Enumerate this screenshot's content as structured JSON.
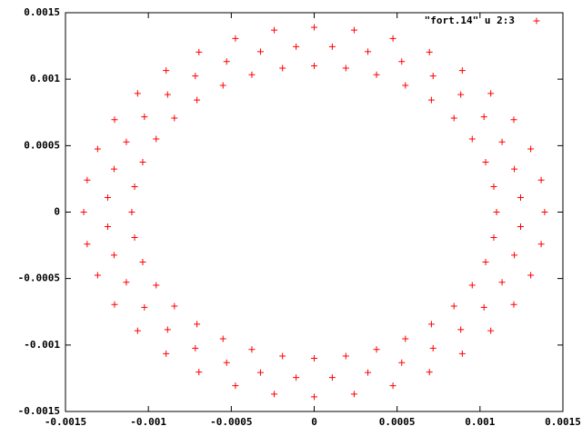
{
  "chart_data": {
    "type": "scatter",
    "xlim": [
      -0.0015,
      0.0015
    ],
    "ylim": [
      -0.0015,
      0.0015
    ],
    "xticks": [
      -0.0015,
      -0.001,
      -0.0005,
      0,
      0.0005,
      0.001,
      0.0015
    ],
    "yticks": [
      -0.0015,
      -0.001,
      -0.0005,
      0,
      0.0005,
      0.001,
      0.0015
    ],
    "legend": "top-right",
    "series": [
      {
        "name": "\"fort.14\" u 2:3",
        "color": "#ff0000",
        "x": [
          0.0011,
          0.001083,
          0.001034,
          0.000953,
          0.000843,
          0.000707,
          0.00055,
          0.000376,
          0.000191,
          0,
          -0.000191,
          -0.000376,
          -0.00055,
          -0.000707,
          -0.000843,
          -0.000953,
          -0.001034,
          -0.001083,
          -0.0011,
          -0.001083,
          -0.001034,
          -0.000953,
          -0.000843,
          -0.000707,
          -0.00055,
          -0.000376,
          -0.000191,
          0,
          0.000191,
          0.000376,
          0.00055,
          0.000707,
          0.000843,
          0.000953,
          0.001034,
          0.001083,
          0.001245,
          0.001207,
          0.001133,
          0.001024,
          0.000884,
          0.000717,
          0.000528,
          0.000324,
          0.000109,
          -0.000109,
          -0.000324,
          -0.000528,
          -0.000717,
          -0.000884,
          -0.001024,
          -0.001133,
          -0.001207,
          -0.001245,
          -0.001245,
          -0.001207,
          -0.001133,
          -0.001024,
          -0.000884,
          -0.000717,
          -0.000528,
          -0.000324,
          -0.000109,
          0.000109,
          0.000324,
          0.000528,
          0.000717,
          0.000884,
          0.001024,
          0.001133,
          0.001207,
          0.001245,
          0.00139,
          0.001369,
          0.001306,
          0.001204,
          0.001065,
          0.000893,
          0.000695,
          0.000475,
          0.000241,
          0,
          -0.000241,
          -0.000475,
          -0.000695,
          -0.000893,
          -0.001065,
          -0.001204,
          -0.001306,
          -0.001369,
          -0.00139,
          -0.001369,
          -0.001306,
          -0.001204,
          -0.001065,
          -0.000893,
          -0.000695,
          -0.000475,
          -0.000241,
          0,
          0.000241,
          0.000475,
          0.000695,
          0.000893,
          0.001065,
          0.001204,
          0.001306,
          0.001369
        ],
        "values": [
          0,
          0.000191,
          0.000376,
          0.00055,
          0.000707,
          0.000843,
          0.000953,
          0.001034,
          0.001083,
          0.0011,
          0.001083,
          0.001034,
          0.000953,
          0.000843,
          0.000707,
          0.00055,
          0.000376,
          0.000191,
          0,
          -0.000191,
          -0.000376,
          -0.00055,
          -0.000707,
          -0.000843,
          -0.000953,
          -0.001034,
          -0.001083,
          -0.0011,
          -0.001083,
          -0.001034,
          -0.000953,
          -0.000843,
          -0.000707,
          -0.00055,
          -0.000376,
          -0.000191,
          0.000109,
          0.000324,
          0.000528,
          0.000717,
          0.000884,
          0.001024,
          0.001133,
          0.001207,
          0.001245,
          0.001245,
          0.001207,
          0.001133,
          0.001024,
          0.000884,
          0.000717,
          0.000528,
          0.000324,
          0.000109,
          -0.000109,
          -0.000324,
          -0.000528,
          -0.000717,
          -0.000884,
          -0.001024,
          -0.001133,
          -0.001207,
          -0.001245,
          -0.001245,
          -0.001207,
          -0.001133,
          -0.001024,
          -0.000884,
          -0.000717,
          -0.000528,
          -0.000324,
          -0.000109,
          0,
          0.000241,
          0.000475,
          0.000695,
          0.000893,
          0.001065,
          0.001204,
          0.001306,
          0.001369,
          0.00139,
          0.001369,
          0.001306,
          0.001204,
          0.001065,
          0.000893,
          0.000695,
          0.000475,
          0.000241,
          0,
          -0.000241,
          -0.000475,
          -0.000695,
          -0.000893,
          -0.001065,
          -0.001204,
          -0.001306,
          -0.001369,
          -0.00139,
          -0.001369,
          -0.001306,
          -0.001204,
          -0.001065,
          -0.000893,
          -0.000695,
          -0.000475,
          -0.000241
        ]
      }
    ]
  }
}
